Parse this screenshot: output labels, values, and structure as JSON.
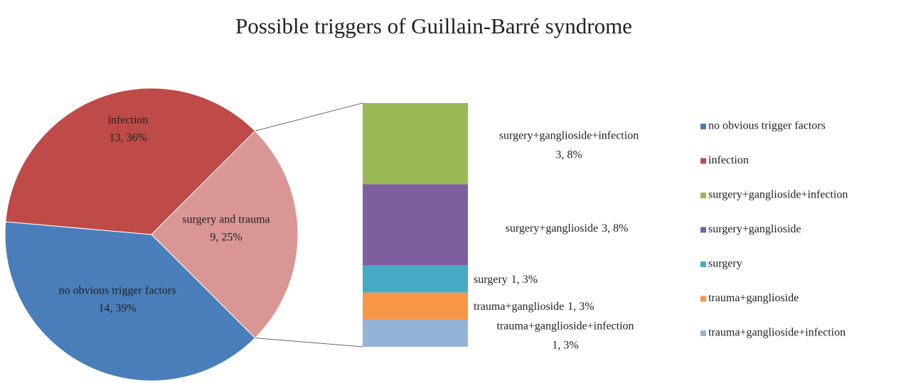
{
  "chart_data": {
    "type": "pie",
    "title": "Possible triggers of Guillain-Barré syndrome",
    "categories": [
      "no obvious trigger factors",
      "infection",
      "surgery and trauma"
    ],
    "values": [
      14,
      13,
      9
    ],
    "value_labels": [
      "14, 39%",
      "13, 36%",
      "9, 25%"
    ],
    "colors": [
      "#4a7ebb",
      "#be4b48",
      "#d99694"
    ],
    "breakdown": {
      "type": "bar",
      "categories": [
        "surgery+ganglioside+infection",
        "surgery+ganglioside",
        "surgery",
        "trauma+ganglioside",
        "trauma+ganglioside+infection"
      ],
      "values": [
        3,
        3,
        1,
        1,
        1
      ],
      "value_labels": [
        "3, 8%",
        "3, 8%",
        "1, 3%",
        "1, 3%",
        "1, 3%"
      ],
      "colors": [
        "#98b954",
        "#7d5fa0",
        "#46aac5",
        "#f79646",
        "#95b3d7"
      ]
    },
    "legend": "right"
  }
}
